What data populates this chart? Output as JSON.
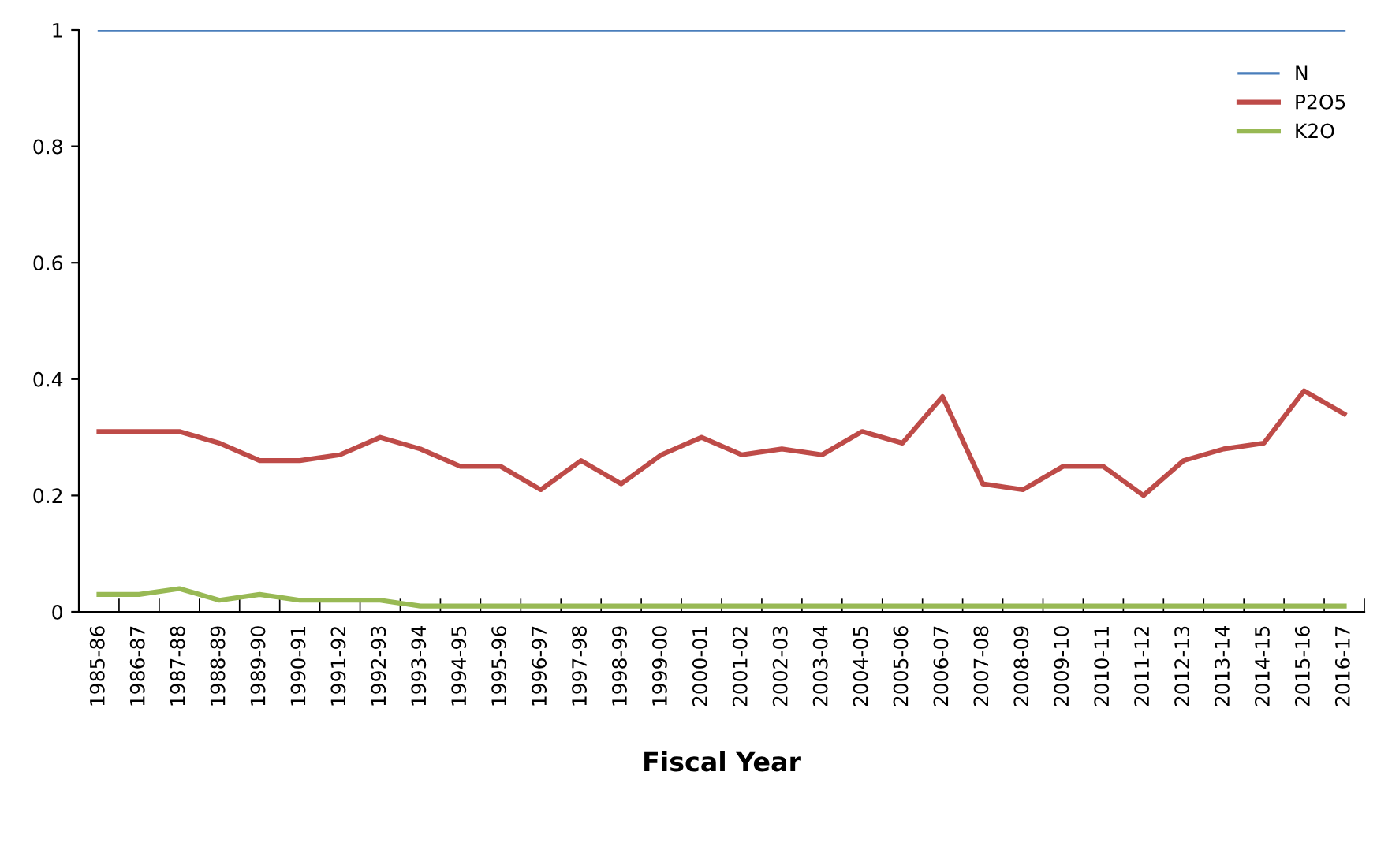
{
  "chart_data": {
    "type": "line",
    "xlabel": "Fiscal Year",
    "categories": [
      "1985-86",
      "1986-87",
      "1987-88",
      "1988-89",
      "1989-90",
      "1990-91",
      "1991-92",
      "1992-93",
      "1993-94",
      "1994-95",
      "1995-96",
      "1996-97",
      "1997-98",
      "1998-99",
      "1999-00",
      "2000-01",
      "2001-02",
      "2002-03",
      "2003-04",
      "2004-05",
      "2005-06",
      "2006-07",
      "2007-08",
      "2008-09",
      "2009-10",
      "2010-11",
      "2011-12",
      "2012-13",
      "2013-14",
      "2014-15",
      "2015-16",
      "2016-17"
    ],
    "series": [
      {
        "name": "N",
        "color": "#4a7ebb",
        "values": [
          1,
          1,
          1,
          1,
          1,
          1,
          1,
          1,
          1,
          1,
          1,
          1,
          1,
          1,
          1,
          1,
          1,
          1,
          1,
          1,
          1,
          1,
          1,
          1,
          1,
          1,
          1,
          1,
          1,
          1,
          1,
          1
        ]
      },
      {
        "name": "P2O5",
        "color": "#be4b48",
        "values": [
          0.31,
          0.31,
          0.31,
          0.29,
          0.26,
          0.26,
          0.27,
          0.3,
          0.28,
          0.25,
          0.25,
          0.21,
          0.26,
          0.22,
          0.27,
          0.3,
          0.27,
          0.28,
          0.27,
          0.31,
          0.29,
          0.37,
          0.22,
          0.21,
          0.25,
          0.25,
          0.2,
          0.26,
          0.28,
          0.29,
          0.38,
          0.34
        ]
      },
      {
        "name": "K2O",
        "color": "#98b954",
        "values": [
          0.03,
          0.03,
          0.04,
          0.02,
          0.03,
          0.02,
          0.02,
          0.02,
          0.01,
          0.01,
          0.01,
          0.01,
          0.01,
          0.01,
          0.01,
          0.01,
          0.01,
          0.01,
          0.01,
          0.01,
          0.01,
          0.01,
          0.01,
          0.01,
          0.01,
          0.01,
          0.01,
          0.01,
          0.01,
          0.01,
          0.01,
          0.01
        ]
      }
    ],
    "ylim": [
      0,
      1
    ],
    "yticks": [
      0,
      0.2,
      0.4,
      0.6,
      0.8,
      1
    ],
    "grid": false,
    "legend": "top right"
  }
}
